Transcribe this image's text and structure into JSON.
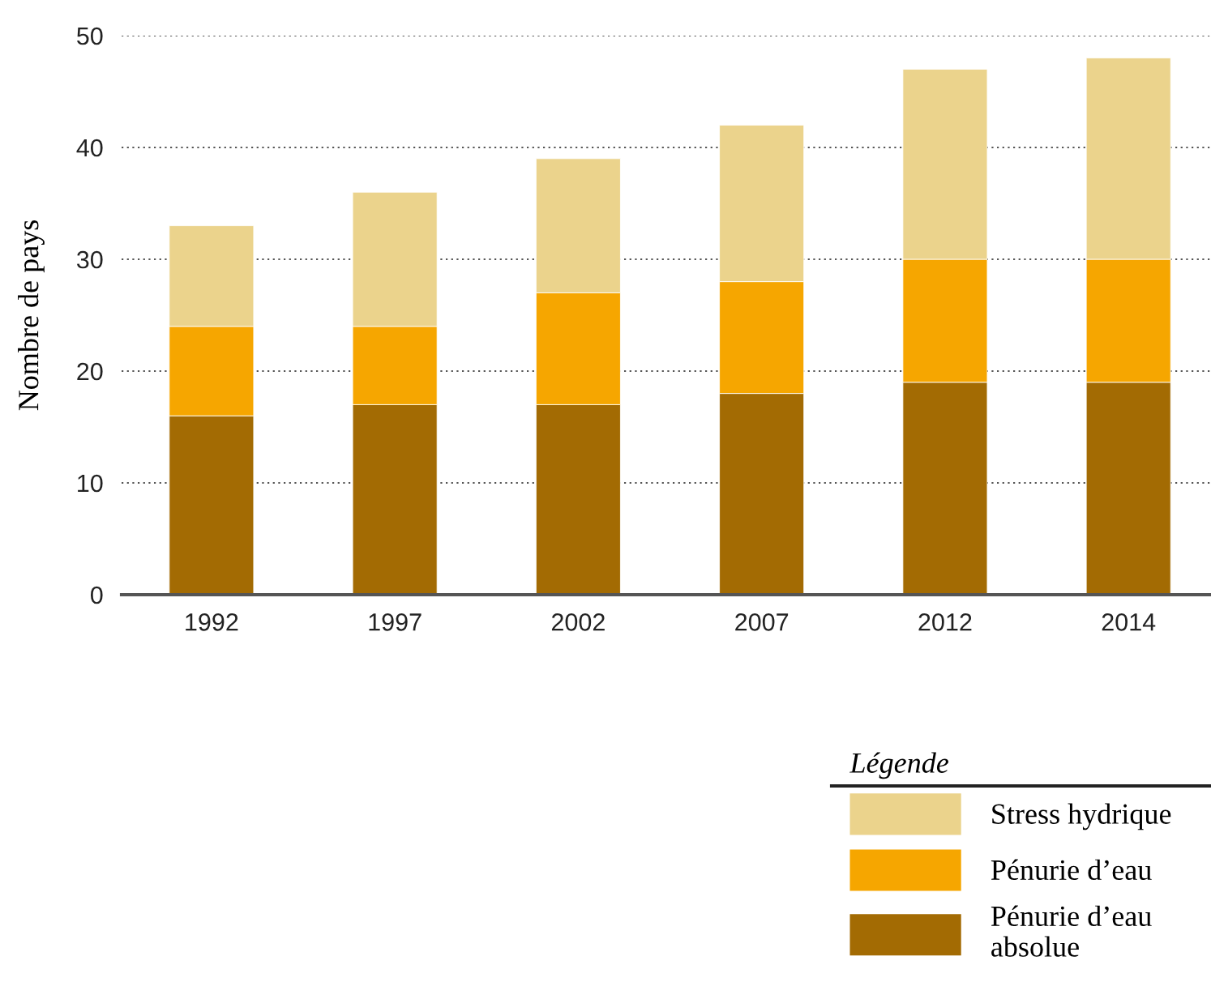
{
  "chart_data": {
    "type": "bar",
    "stacked": true,
    "ylabel": "Nombre de pays",
    "legend_title": "Légende",
    "categories": [
      "1992",
      "1997",
      "2002",
      "2007",
      "2012",
      "2014"
    ],
    "series": [
      {
        "name": "Pénurie d’eau\nabsolue",
        "color": "#a36b03",
        "values": [
          16,
          17,
          17,
          18,
          19,
          19
        ]
      },
      {
        "name": "Pénurie d’eau",
        "color": "#f6a600",
        "values": [
          8,
          7,
          10,
          10,
          11,
          11
        ]
      },
      {
        "name": "Stress hydrique",
        "color": "#ebd38c",
        "values": [
          9,
          12,
          12,
          14,
          17,
          18
        ]
      }
    ],
    "ylim": [
      0,
      50
    ],
    "yticks": [
      0,
      10,
      20,
      30,
      40,
      50
    ],
    "grid": "y",
    "legend": "bottom right"
  }
}
